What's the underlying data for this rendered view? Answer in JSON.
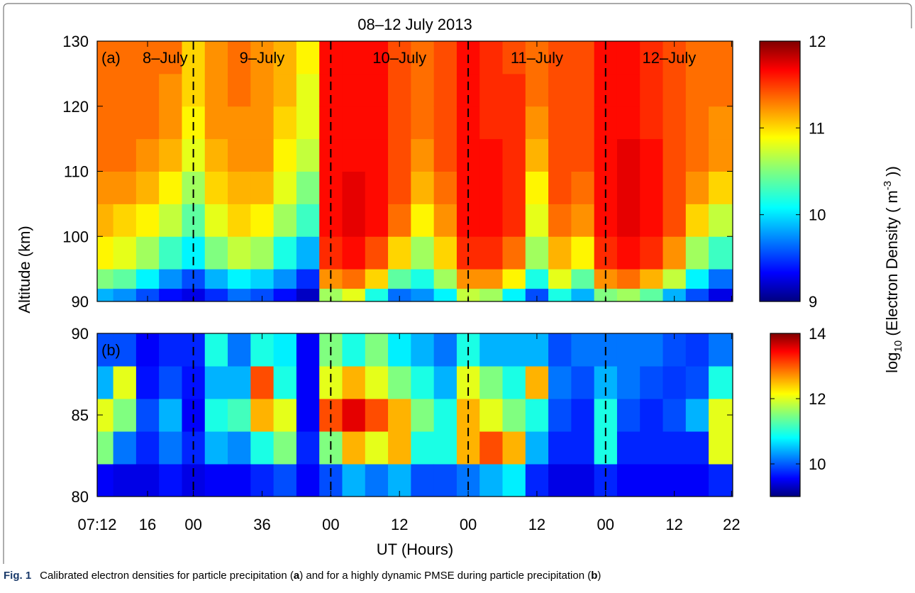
{
  "chart_data": [
    {
      "type": "heatmap",
      "title": "08–12 July 2013",
      "panel_label": "(a)",
      "day_labels": [
        "8–July",
        "9–July",
        "10–July",
        "11–July",
        "12–July"
      ],
      "day_boundaries": [
        24,
        48,
        72,
        96
      ],
      "xbins": [
        7.2,
        10,
        14,
        18,
        22,
        26,
        30,
        34,
        38,
        42,
        46,
        50,
        54,
        58,
        62,
        66,
        70,
        74,
        78,
        82,
        86,
        90,
        94,
        98,
        102,
        106,
        110,
        114,
        118.2
      ],
      "ybins": [
        90,
        92,
        95,
        100,
        105,
        110,
        115,
        120,
        125,
        130
      ],
      "values": [
        [
          9.9,
          10.5,
          10.9,
          11.1,
          11.2,
          11.3,
          11.3,
          11.3,
          11.3
        ],
        [
          9.8,
          10.4,
          10.8,
          11.0,
          11.2,
          11.3,
          11.3,
          11.3,
          11.3
        ],
        [
          9.6,
          10.1,
          10.6,
          10.9,
          11.1,
          11.2,
          11.3,
          11.3,
          11.3
        ],
        [
          9.4,
          9.8,
          10.3,
          10.7,
          10.9,
          11.1,
          11.2,
          11.2,
          11.3
        ],
        [
          9.3,
          9.6,
          10.1,
          10.4,
          10.6,
          10.8,
          10.9,
          11.0,
          11.0
        ],
        [
          9.5,
          9.9,
          10.5,
          10.8,
          11.0,
          11.1,
          11.2,
          11.2,
          11.2
        ],
        [
          9.7,
          10.1,
          10.7,
          11.0,
          11.1,
          11.2,
          11.2,
          11.3,
          11.3
        ],
        [
          9.6,
          10.0,
          10.6,
          10.9,
          11.1,
          11.2,
          11.2,
          11.2,
          11.2
        ],
        [
          9.4,
          9.8,
          10.2,
          10.6,
          10.8,
          10.9,
          11.0,
          11.1,
          11.1
        ],
        [
          9.2,
          9.5,
          9.9,
          10.3,
          10.5,
          10.7,
          10.8,
          10.8,
          10.9
        ],
        [
          10.6,
          11.2,
          11.5,
          11.6,
          11.6,
          11.6,
          11.6,
          11.6,
          11.6
        ],
        [
          10.8,
          11.3,
          11.6,
          11.7,
          11.7,
          11.6,
          11.6,
          11.6,
          11.6
        ],
        [
          10.2,
          11.0,
          11.4,
          11.6,
          11.6,
          11.6,
          11.6,
          11.6,
          11.6
        ],
        [
          9.7,
          10.4,
          11.0,
          11.3,
          11.4,
          11.4,
          11.4,
          11.4,
          11.4
        ],
        [
          9.8,
          10.2,
          10.6,
          10.9,
          11.1,
          11.2,
          11.3,
          11.3,
          11.3
        ],
        [
          10.1,
          10.6,
          11.0,
          11.2,
          11.3,
          11.4,
          11.4,
          11.4,
          11.4
        ],
        [
          10.7,
          11.2,
          11.5,
          11.6,
          11.6,
          11.6,
          11.6,
          11.6,
          11.6
        ],
        [
          10.6,
          11.2,
          11.5,
          11.6,
          11.6,
          11.6,
          11.5,
          11.5,
          11.5
        ],
        [
          10.1,
          10.9,
          11.3,
          11.5,
          11.5,
          11.5,
          11.5,
          11.5,
          11.4
        ],
        [
          9.6,
          10.2,
          10.6,
          10.8,
          10.9,
          11.1,
          11.2,
          11.3,
          11.3
        ],
        [
          10.2,
          10.8,
          11.1,
          11.3,
          11.4,
          11.4,
          11.4,
          11.4,
          11.4
        ],
        [
          9.9,
          10.4,
          10.9,
          11.2,
          11.3,
          11.4,
          11.4,
          11.4,
          11.4
        ],
        [
          10.5,
          11.2,
          11.5,
          11.6,
          11.6,
          11.6,
          11.6,
          11.6,
          11.6
        ],
        [
          10.6,
          11.3,
          11.6,
          11.7,
          11.7,
          11.7,
          11.6,
          11.6,
          11.6
        ],
        [
          10.4,
          11.1,
          11.5,
          11.6,
          11.6,
          11.6,
          11.5,
          11.5,
          11.5
        ],
        [
          9.9,
          10.7,
          11.2,
          11.4,
          11.4,
          11.4,
          11.4,
          11.4,
          11.4
        ],
        [
          9.6,
          10.1,
          10.6,
          11.0,
          11.2,
          11.3,
          11.3,
          11.3,
          11.3
        ],
        [
          9.3,
          9.7,
          10.3,
          10.7,
          11.0,
          11.2,
          11.2,
          11.3,
          11.3
        ]
      ],
      "xlim": [
        7.2,
        118.2
      ],
      "ylim": [
        90,
        130
      ],
      "yticks": [
        90,
        100,
        110,
        120,
        130
      ],
      "colormap": "jet",
      "clim": [
        9,
        12
      ],
      "cticks": [
        9,
        10,
        11,
        12
      ]
    },
    {
      "type": "heatmap",
      "panel_label": "(b)",
      "day_boundaries": [
        24,
        48,
        72,
        96
      ],
      "xbins": [
        7.2,
        10,
        14,
        18,
        22,
        26,
        30,
        34,
        38,
        42,
        46,
        50,
        54,
        58,
        62,
        66,
        70,
        74,
        78,
        82,
        86,
        90,
        94,
        98,
        102,
        106,
        110,
        114,
        118.2
      ],
      "ybins": [
        80,
        82,
        84,
        86,
        88,
        90
      ],
      "values": [
        [
          9.6,
          11.5,
          12.0,
          10.5,
          10.0
        ],
        [
          9.5,
          10.2,
          11.5,
          12.0,
          10.0
        ],
        [
          9.5,
          9.8,
          10.0,
          9.7,
          9.6
        ],
        [
          9.7,
          10.2,
          10.5,
          10.0,
          9.8
        ],
        [
          9.5,
          9.8,
          9.6,
          9.7,
          9.8
        ],
        [
          9.6,
          10.5,
          11.0,
          10.5,
          11.0
        ],
        [
          9.6,
          10.3,
          11.2,
          10.5,
          10.2
        ],
        [
          9.8,
          11.0,
          12.5,
          13.0,
          11.0
        ],
        [
          10.0,
          11.5,
          12.0,
          11.0,
          10.8
        ],
        [
          9.6,
          9.8,
          9.6,
          9.6,
          9.6
        ],
        [
          10.0,
          11.5,
          13.0,
          12.0,
          11.5
        ],
        [
          10.5,
          12.5,
          13.5,
          12.5,
          11.0
        ],
        [
          10.2,
          12.0,
          13.0,
          12.0,
          11.5
        ],
        [
          10.5,
          12.5,
          12.5,
          11.5,
          10.8
        ],
        [
          10.0,
          11.0,
          11.5,
          11.0,
          10.5
        ],
        [
          10.0,
          11.0,
          11.0,
          10.5,
          10.2
        ],
        [
          10.2,
          12.5,
          12.5,
          12.0,
          11.0
        ],
        [
          10.5,
          13.0,
          12.0,
          11.5,
          10.5
        ],
        [
          10.8,
          12.5,
          11.5,
          11.0,
          10.5
        ],
        [
          9.8,
          10.5,
          11.0,
          12.5,
          10.5
        ],
        [
          9.5,
          9.8,
          10.0,
          10.2,
          10.0
        ],
        [
          9.5,
          9.8,
          9.8,
          10.0,
          10.2
        ],
        [
          9.8,
          11.0,
          11.0,
          10.5,
          10.2
        ],
        [
          9.6,
          9.8,
          10.0,
          10.2,
          10.2
        ],
        [
          9.6,
          9.8,
          9.8,
          10.0,
          10.2
        ],
        [
          9.6,
          9.8,
          10.0,
          9.9,
          10.0
        ],
        [
          9.6,
          9.8,
          10.5,
          10.0,
          9.9
        ],
        [
          9.8,
          12.0,
          12.0,
          11.0,
          10.2
        ]
      ],
      "xlim": [
        7.2,
        118.2
      ],
      "xticks": [
        {
          "value": 7.2,
          "label": "07:12"
        },
        16,
        {
          "value": 24,
          "label": "00"
        },
        36,
        {
          "value": 48,
          "label": "00"
        },
        {
          "value": 60,
          "label": "12"
        },
        {
          "value": 72,
          "label": "00"
        },
        {
          "value": 84,
          "label": "12"
        },
        {
          "value": 96,
          "label": "00"
        },
        {
          "value": 108,
          "label": "12"
        },
        {
          "value": 118,
          "label": "22"
        }
      ],
      "xlabel": "UT (Hours)",
      "ylim": [
        80,
        90
      ],
      "yticks": [
        80,
        85,
        90
      ],
      "colormap": "jet",
      "clim": [
        9,
        14
      ],
      "cticks": [
        10,
        12,
        14
      ]
    }
  ],
  "ylabel": "Altitude (km)",
  "colorbar_label": {
    "prefix": "log",
    "sub": "10",
    "main": " (Electron Density  ( m",
    "sup": "-3",
    "suffix": " ))"
  },
  "caption": {
    "label": "Fig. 1",
    "parts": [
      "Calibrated electron densities for particle precipitation (",
      "a",
      ") and for a highly dynamic PMSE during particle precipitation (",
      "b",
      ")"
    ]
  }
}
